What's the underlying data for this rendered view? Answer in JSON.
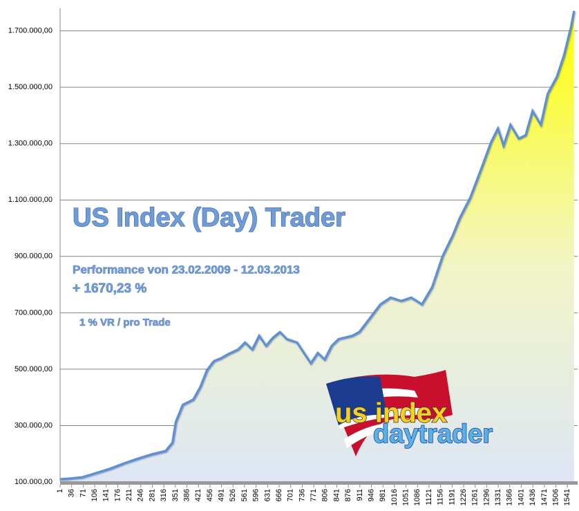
{
  "chart_data": {
    "type": "area",
    "title": "US Index (Day) Trader",
    "annotations": [
      "Performance  von  23.02.2009 - 12.03.2013",
      "+ 1670,23 %",
      "1 % VR / pro Trade"
    ],
    "logo": [
      "us index",
      "daytrader"
    ],
    "x": [
      1,
      26,
      68,
      110,
      152,
      194,
      237,
      279,
      321,
      342,
      352,
      373,
      405,
      426,
      447,
      468,
      489,
      510,
      541,
      562,
      584,
      605,
      626,
      647,
      668,
      689,
      720,
      741,
      762,
      783,
      804,
      825,
      846,
      888,
      909,
      941,
      973,
      1004,
      1036,
      1067,
      1099,
      1130,
      1162,
      1193,
      1214,
      1246,
      1278,
      1309,
      1330,
      1347,
      1368,
      1393,
      1414,
      1435,
      1460,
      1481,
      1509,
      1530,
      1551,
      1561
    ],
    "values": [
      110000,
      112000,
      117000,
      132000,
      147000,
      166000,
      183000,
      198000,
      210000,
      240000,
      313000,
      374000,
      392000,
      436000,
      497000,
      529000,
      539000,
      553000,
      570000,
      595000,
      570000,
      619000,
      583000,
      612000,
      632000,
      607000,
      595000,
      558000,
      521000,
      558000,
      534000,
      583000,
      607000,
      619000,
      632000,
      681000,
      730000,
      754000,
      742000,
      754000,
      730000,
      791000,
      901000,
      975000,
      1036000,
      1109000,
      1207000,
      1305000,
      1354000,
      1293000,
      1367000,
      1318000,
      1330000,
      1416000,
      1367000,
      1477000,
      1538000,
      1612000,
      1710000,
      1771000
    ],
    "line_color": "#5b8fd4",
    "area_top_color": "#ffff00",
    "area_bottom_color": "#dde6f5",
    "xlim": [
      1,
      1572
    ],
    "xticks": [
      1,
      36,
      71,
      106,
      141,
      176,
      211,
      246,
      281,
      316,
      351,
      386,
      421,
      456,
      491,
      526,
      561,
      596,
      631,
      666,
      701,
      736,
      771,
      806,
      841,
      876,
      911,
      946,
      981,
      1016,
      1051,
      1086,
      1121,
      1156,
      1191,
      1226,
      1261,
      1296,
      1331,
      1366,
      1401,
      1436,
      1471,
      1506,
      1541
    ],
    "ylim": [
      100000,
      1780000
    ],
    "yticks": [
      {
        "value": 100000,
        "label": "100.000,00"
      },
      {
        "value": 300000,
        "label": "300.000,00"
      },
      {
        "value": 500000,
        "label": "500.000,00"
      },
      {
        "value": 700000,
        "label": "700.000,00"
      },
      {
        "value": 900000,
        "label": "900.000,00"
      },
      {
        "value": 1100000,
        "label": "1.100.000,00"
      },
      {
        "value": 1300000,
        "label": "1.300.000,00"
      },
      {
        "value": 1500000,
        "label": "1.500.000,00"
      },
      {
        "value": 1700000,
        "label": "1.700.000,00"
      }
    ],
    "grid": true
  }
}
